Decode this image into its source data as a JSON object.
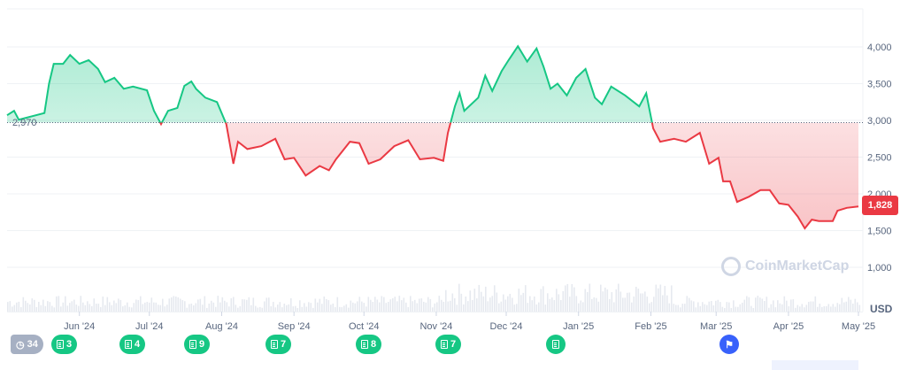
{
  "chart_data": {
    "type": "area",
    "baseline": 2970,
    "baseline_label": "2,970",
    "current_price": 1828,
    "current_label": "1,828",
    "currency_label": "USD",
    "ylim": [
      500,
      4500
    ],
    "yticks": [
      {
        "v": 1000,
        "label": "1,000"
      },
      {
        "v": 1500,
        "label": "1,500"
      },
      {
        "v": 2000,
        "label": "2,000"
      },
      {
        "v": 2500,
        "label": "2,500"
      },
      {
        "v": 3000,
        "label": "3,000"
      },
      {
        "v": 3500,
        "label": "3,500"
      },
      {
        "v": 4000,
        "label": "4,000"
      }
    ],
    "xticks": [
      {
        "d": "2024-06-01",
        "label": "Jun '24"
      },
      {
        "d": "2024-07-01",
        "label": "Jul '24"
      },
      {
        "d": "2024-08-01",
        "label": "Aug '24"
      },
      {
        "d": "2024-09-01",
        "label": "Sep '24"
      },
      {
        "d": "2024-10-01",
        "label": "Oct '24"
      },
      {
        "d": "2024-11-01",
        "label": "Nov '24"
      },
      {
        "d": "2024-12-01",
        "label": "Dec '24"
      },
      {
        "d": "2025-01-01",
        "label": "Jan '25"
      },
      {
        "d": "2025-02-01",
        "label": "Feb '25"
      },
      {
        "d": "2025-03-01",
        "label": "Mar '25"
      },
      {
        "d": "2025-04-01",
        "label": "Apr '25"
      },
      {
        "d": "2025-05-01",
        "label": "May '25"
      }
    ],
    "grid": true,
    "colors": {
      "up": "#16c784",
      "down": "#ea3943",
      "grid": "#eff2f5"
    },
    "series": [
      [
        "2024-05-01",
        3070
      ],
      [
        "2024-05-04",
        3130
      ],
      [
        "2024-05-06",
        3010
      ],
      [
        "2024-05-17",
        3100
      ],
      [
        "2024-05-19",
        3500
      ],
      [
        "2024-05-21",
        3770
      ],
      [
        "2024-05-25",
        3770
      ],
      [
        "2024-05-28",
        3890
      ],
      [
        "2024-06-01",
        3770
      ],
      [
        "2024-06-05",
        3820
      ],
      [
        "2024-06-09",
        3700
      ],
      [
        "2024-06-12",
        3520
      ],
      [
        "2024-06-16",
        3580
      ],
      [
        "2024-06-20",
        3430
      ],
      [
        "2024-06-24",
        3460
      ],
      [
        "2024-06-30",
        3410
      ],
      [
        "2024-07-03",
        3130
      ],
      [
        "2024-07-06",
        2950
      ],
      [
        "2024-07-09",
        3130
      ],
      [
        "2024-07-13",
        3170
      ],
      [
        "2024-07-16",
        3470
      ],
      [
        "2024-07-19",
        3530
      ],
      [
        "2024-07-21",
        3430
      ],
      [
        "2024-07-25",
        3310
      ],
      [
        "2024-07-30",
        3250
      ],
      [
        "2024-08-03",
        2950
      ],
      [
        "2024-08-06",
        2410
      ],
      [
        "2024-08-08",
        2710
      ],
      [
        "2024-08-12",
        2610
      ],
      [
        "2024-08-18",
        2650
      ],
      [
        "2024-08-24",
        2750
      ],
      [
        "2024-08-28",
        2470
      ],
      [
        "2024-09-01",
        2490
      ],
      [
        "2024-09-06",
        2250
      ],
      [
        "2024-09-12",
        2380
      ],
      [
        "2024-09-16",
        2320
      ],
      [
        "2024-09-19",
        2470
      ],
      [
        "2024-09-25",
        2710
      ],
      [
        "2024-09-29",
        2690
      ],
      [
        "2024-10-03",
        2410
      ],
      [
        "2024-10-08",
        2470
      ],
      [
        "2024-10-14",
        2650
      ],
      [
        "2024-10-20",
        2730
      ],
      [
        "2024-10-25",
        2470
      ],
      [
        "2024-10-31",
        2490
      ],
      [
        "2024-11-04",
        2450
      ],
      [
        "2024-11-06",
        2830
      ],
      [
        "2024-11-09",
        3190
      ],
      [
        "2024-11-11",
        3370
      ],
      [
        "2024-11-13",
        3130
      ],
      [
        "2024-11-19",
        3310
      ],
      [
        "2024-11-22",
        3610
      ],
      [
        "2024-11-25",
        3400
      ],
      [
        "2024-11-29",
        3670
      ],
      [
        "2024-12-02",
        3820
      ],
      [
        "2024-12-06",
        4010
      ],
      [
        "2024-12-10",
        3800
      ],
      [
        "2024-12-14",
        3980
      ],
      [
        "2024-12-17",
        3730
      ],
      [
        "2024-12-20",
        3430
      ],
      [
        "2024-12-23",
        3500
      ],
      [
        "2024-12-27",
        3340
      ],
      [
        "2024-12-31",
        3580
      ],
      [
        "2025-01-04",
        3700
      ],
      [
        "2025-01-08",
        3310
      ],
      [
        "2025-01-11",
        3220
      ],
      [
        "2025-01-15",
        3460
      ],
      [
        "2025-01-21",
        3340
      ],
      [
        "2025-01-27",
        3190
      ],
      [
        "2025-01-30",
        3370
      ],
      [
        "2025-02-02",
        2890
      ],
      [
        "2025-02-05",
        2710
      ],
      [
        "2025-02-11",
        2750
      ],
      [
        "2025-02-16",
        2710
      ],
      [
        "2025-02-22",
        2830
      ],
      [
        "2025-02-26",
        2410
      ],
      [
        "2025-03-02",
        2490
      ],
      [
        "2025-03-04",
        2170
      ],
      [
        "2025-03-07",
        2170
      ],
      [
        "2025-03-10",
        1890
      ],
      [
        "2025-03-15",
        1960
      ],
      [
        "2025-03-20",
        2050
      ],
      [
        "2025-03-24",
        2050
      ],
      [
        "2025-03-28",
        1870
      ],
      [
        "2025-04-01",
        1850
      ],
      [
        "2025-04-05",
        1690
      ],
      [
        "2025-04-08",
        1530
      ],
      [
        "2025-04-11",
        1650
      ],
      [
        "2025-04-14",
        1630
      ],
      [
        "2025-04-20",
        1630
      ],
      [
        "2025-04-22",
        1770
      ],
      [
        "2025-04-26",
        1810
      ],
      [
        "2025-05-01",
        1828
      ]
    ]
  },
  "events": {
    "history_count": "34",
    "markers": [
      {
        "type": "doc",
        "count": "3",
        "icon": "document-icon"
      },
      {
        "type": "doc",
        "count": "4",
        "icon": "document-icon"
      },
      {
        "type": "doc",
        "count": "9",
        "icon": "document-icon"
      },
      {
        "type": "doc",
        "count": "7",
        "icon": "document-icon"
      },
      {
        "type": "doc",
        "count": "8",
        "icon": "document-icon"
      },
      {
        "type": "doc",
        "count": "7",
        "icon": "document-icon"
      },
      {
        "type": "doc",
        "count": "",
        "icon": "document-icon"
      },
      {
        "type": "flag",
        "count": "",
        "icon": "flag-icon"
      }
    ]
  },
  "watermark": "CoinMarketCap"
}
